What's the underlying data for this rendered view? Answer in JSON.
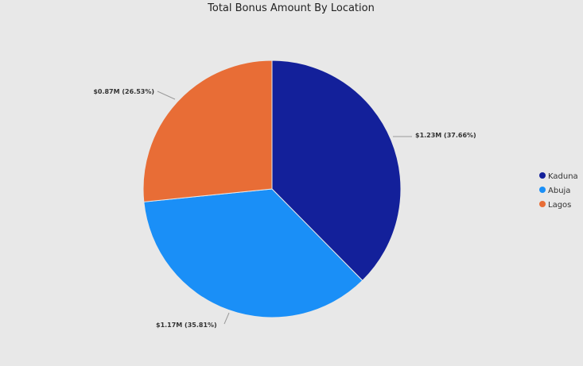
{
  "chart_data": {
    "type": "pie",
    "title": "Total Bonus Amount By Location",
    "slices": [
      {
        "name": "Kaduna",
        "value": 1.23,
        "label": "$1.23M (37.66%)",
        "color": "#13209a"
      },
      {
        "name": "Abuja",
        "value": 1.17,
        "label": "$1.17M (35.81%)",
        "color": "#1a8ff7"
      },
      {
        "name": "Lagos",
        "value": 0.87,
        "label": "$0.87M (26.53%)",
        "color": "#e86d36"
      }
    ],
    "legend": "right"
  }
}
